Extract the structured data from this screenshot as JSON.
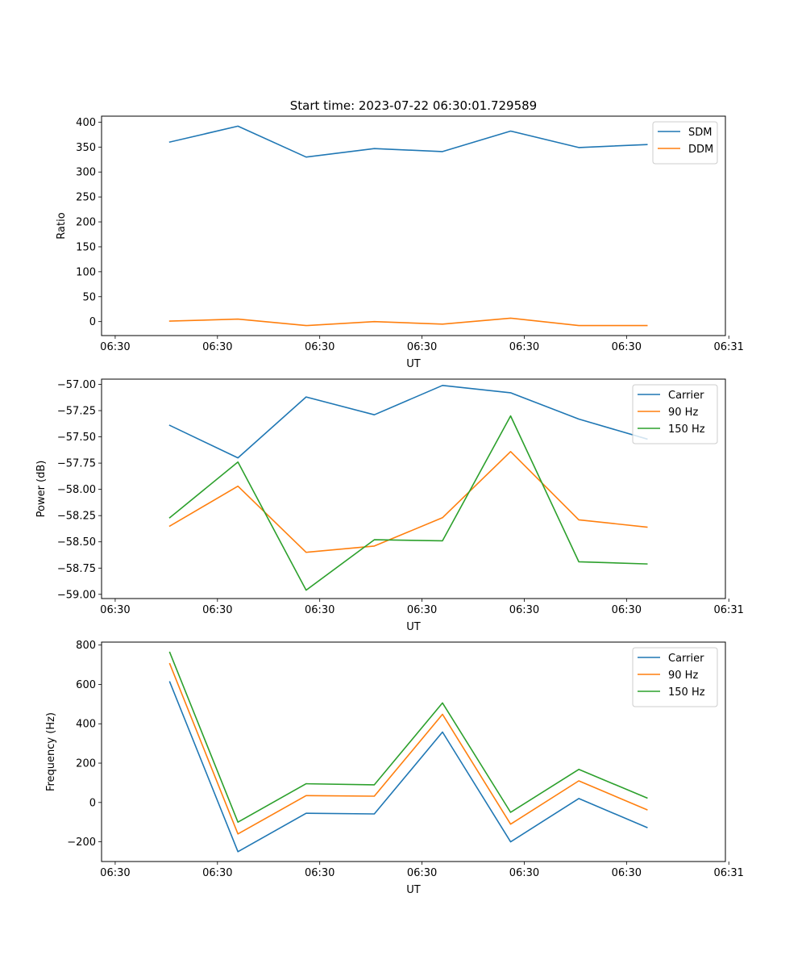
{
  "figure": {
    "title": "Start time: 2023-07-22 06:30:01.729589"
  },
  "chart_data": [
    {
      "type": "line",
      "title": "Start time: 2023-07-22 06:30:01.729589",
      "xlabel": "UT",
      "ylabel": "Ratio",
      "x": [
        1,
        2,
        3,
        4,
        5,
        6,
        7,
        8
      ],
      "xlim": [
        0,
        9.15
      ],
      "xticks": [
        0.2,
        1.7,
        3.2,
        4.7,
        6.2,
        7.7,
        9.2
      ],
      "xtick_labels": [
        "06:30",
        "06:30",
        "06:30",
        "06:30",
        "06:30",
        "06:30",
        "06:31"
      ],
      "ylim": [
        -28,
        412
      ],
      "yticks": [
        0,
        50,
        100,
        150,
        200,
        250,
        300,
        350,
        400
      ],
      "ytick_labels": [
        "0",
        "50",
        "100",
        "150",
        "200",
        "250",
        "300",
        "350",
        "400"
      ],
      "legend_position": "top-right",
      "series": [
        {
          "name": "SDM",
          "color": "#1f77b4",
          "values": [
            360,
            392,
            330,
            347,
            341,
            382,
            349,
            355
          ]
        },
        {
          "name": "DDM",
          "color": "#ff7f0e",
          "values": [
            1,
            5,
            -8,
            0,
            -5,
            7,
            -8,
            -8
          ]
        }
      ]
    },
    {
      "type": "line",
      "title": "",
      "xlabel": "UT",
      "ylabel": "Power (dB)",
      "x": [
        1,
        2,
        3,
        4,
        5,
        6,
        7,
        8
      ],
      "xlim": [
        0,
        9.15
      ],
      "xticks": [
        0.2,
        1.7,
        3.2,
        4.7,
        6.2,
        7.7,
        9.2
      ],
      "xtick_labels": [
        "06:30",
        "06:30",
        "06:30",
        "06:30",
        "06:30",
        "06:30",
        "06:31"
      ],
      "ylim": [
        -59.04,
        -56.95
      ],
      "yticks": [
        -59.0,
        -58.75,
        -58.5,
        -58.25,
        -58.0,
        -57.75,
        -57.5,
        -57.25,
        -57.0
      ],
      "ytick_labels": [
        "−59.00",
        "−58.75",
        "−58.50",
        "−58.25",
        "−58.00",
        "−57.75",
        "−57.50",
        "−57.25",
        "−57.00"
      ],
      "legend_position": "top-right",
      "series": [
        {
          "name": "Carrier",
          "color": "#1f77b4",
          "values": [
            -57.39,
            -57.7,
            -57.12,
            -57.29,
            -57.01,
            -57.08,
            -57.33,
            -57.52
          ]
        },
        {
          "name": "90 Hz",
          "color": "#ff7f0e",
          "values": [
            -58.35,
            -57.97,
            -58.6,
            -58.54,
            -58.27,
            -57.64,
            -58.29,
            -58.36
          ]
        },
        {
          "name": "150 Hz",
          "color": "#2ca02c",
          "values": [
            -58.27,
            -57.74,
            -58.96,
            -58.48,
            -58.49,
            -57.3,
            -58.69,
            -58.71
          ]
        }
      ]
    },
    {
      "type": "line",
      "title": "",
      "xlabel": "UT",
      "ylabel": "Frequency (Hz)",
      "x": [
        1,
        2,
        3,
        4,
        5,
        6,
        7,
        8
      ],
      "xlim": [
        0,
        9.15
      ],
      "xticks": [
        0.2,
        1.7,
        3.2,
        4.7,
        6.2,
        7.7,
        9.2
      ],
      "xtick_labels": [
        "06:30",
        "06:30",
        "06:30",
        "06:30",
        "06:30",
        "06:30",
        "06:31"
      ],
      "ylim": [
        -300,
        815
      ],
      "yticks": [
        -200,
        0,
        200,
        400,
        600,
        800
      ],
      "ytick_labels": [
        "−200",
        "0",
        "200",
        "400",
        "600",
        "800"
      ],
      "legend_position": "top-right",
      "series": [
        {
          "name": "Carrier",
          "color": "#1f77b4",
          "values": [
            613,
            -250,
            -55,
            -58,
            358,
            -200,
            20,
            -127
          ]
        },
        {
          "name": "90 Hz",
          "color": "#ff7f0e",
          "values": [
            705,
            -160,
            35,
            32,
            448,
            -110,
            110,
            -37
          ]
        },
        {
          "name": "150 Hz",
          "color": "#2ca02c",
          "values": [
            763,
            -100,
            95,
            90,
            506,
            -50,
            168,
            23
          ]
        }
      ]
    }
  ]
}
